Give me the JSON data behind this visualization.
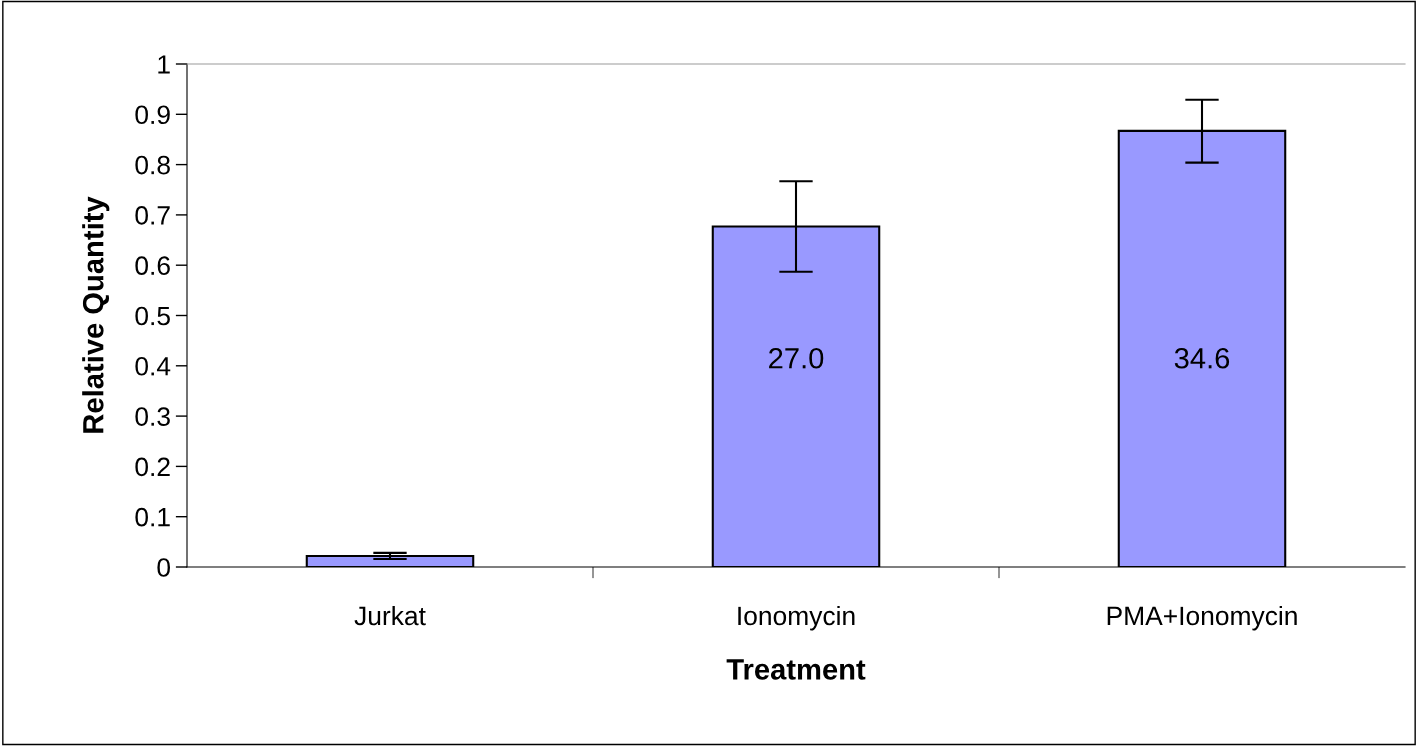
{
  "chart_data": {
    "type": "bar",
    "xlabel": "Treatment",
    "ylabel": "Relative Quantity",
    "categories": [
      "Jurkat",
      "Ionomycin",
      "PMA+Ionomycin"
    ],
    "values": [
      0.022,
      0.677,
      0.867
    ],
    "errors": [
      0.006,
      0.09,
      [
        0.804,
        0.929
      ]
    ],
    "color": "#9999ff",
    "ylim": [
      0,
      1
    ],
    "yticks": [
      0,
      0.1,
      0.2,
      0.3,
      0.4,
      0.5,
      0.6,
      0.7,
      0.8,
      0.9,
      1
    ],
    "annotations": [
      "27.0",
      "34.6"
    ]
  }
}
